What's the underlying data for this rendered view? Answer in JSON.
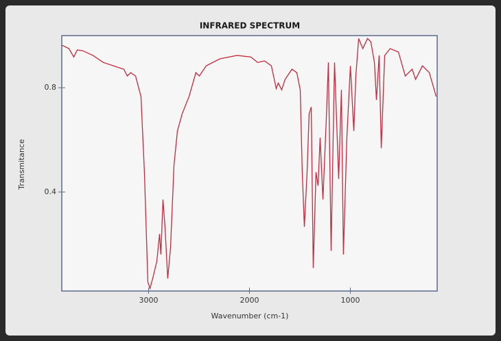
{
  "chart_data": {
    "type": "line",
    "title": "INFRARED SPECTRUM",
    "xlabel": "Wavenumber (cm-1)",
    "ylabel": "Transmitance",
    "xlim": [
      3860,
      140
    ],
    "ylim": [
      0.02,
      1.0
    ],
    "xticks": [
      3000,
      2000,
      1000
    ],
    "yticks": [
      0.4,
      0.8
    ],
    "series": [
      {
        "name": null,
        "color": "#c8283c",
        "x": [
          3857,
          3789,
          3741,
          3707,
          3653,
          3551,
          3449,
          3347,
          3245,
          3211,
          3177,
          3129,
          3075,
          3041,
          3007,
          2986,
          2959,
          2918,
          2891,
          2878,
          2857,
          2837,
          2810,
          2782,
          2748,
          2714,
          2667,
          2599,
          2531,
          2497,
          2429,
          2293,
          2123,
          1987,
          1919,
          1851,
          1783,
          1735,
          1715,
          1681,
          1647,
          1579,
          1531,
          1497,
          1477,
          1456,
          1429,
          1409,
          1388,
          1368,
          1341,
          1320,
          1300,
          1272,
          1238,
          1218,
          1191,
          1157,
          1116,
          1089,
          1069,
          1035,
          1000,
          966,
          946,
          918,
          877,
          830,
          797,
          762,
          742,
          715,
          694,
          660,
          606,
          524,
          456,
          388,
          354,
          286,
          218,
          150
        ],
        "values": [
          0.963,
          0.95,
          0.918,
          0.945,
          0.942,
          0.924,
          0.897,
          0.884,
          0.871,
          0.845,
          0.858,
          0.845,
          0.766,
          0.476,
          0.055,
          0.03,
          0.068,
          0.134,
          0.239,
          0.16,
          0.371,
          0.266,
          0.068,
          0.187,
          0.503,
          0.634,
          0.7,
          0.766,
          0.858,
          0.845,
          0.884,
          0.911,
          0.924,
          0.918,
          0.897,
          0.903,
          0.884,
          0.797,
          0.818,
          0.792,
          0.832,
          0.871,
          0.858,
          0.792,
          0.476,
          0.266,
          0.476,
          0.7,
          0.726,
          0.108,
          0.476,
          0.424,
          0.608,
          0.371,
          0.687,
          0.897,
          0.174,
          0.897,
          0.45,
          0.792,
          0.16,
          0.608,
          0.884,
          0.634,
          0.845,
          0.989,
          0.95,
          0.989,
          0.976,
          0.897,
          0.753,
          0.924,
          0.568,
          0.924,
          0.95,
          0.937,
          0.845,
          0.871,
          0.832,
          0.884,
          0.858,
          0.766
        ]
      }
    ]
  }
}
